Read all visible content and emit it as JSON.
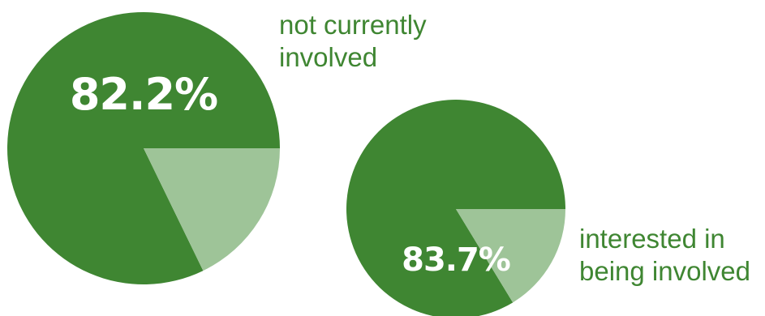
{
  "colors": {
    "main": "#3f8632",
    "remainder": "#9ec498",
    "caption": "#3f8632"
  },
  "chart_data": [
    {
      "type": "pie",
      "slices": [
        {
          "label": "not currently involved",
          "value": 82.2
        },
        {
          "label": "",
          "value": 17.8
        }
      ],
      "value_label": "82.2%",
      "caption_lines": [
        "not currently",
        "involved"
      ]
    },
    {
      "type": "pie",
      "slices": [
        {
          "label": "interested in being involved",
          "value": 83.7
        },
        {
          "label": "",
          "value": 16.3
        }
      ],
      "value_label": "83.7%",
      "caption_lines": [
        "interested in",
        "being involved"
      ]
    }
  ]
}
